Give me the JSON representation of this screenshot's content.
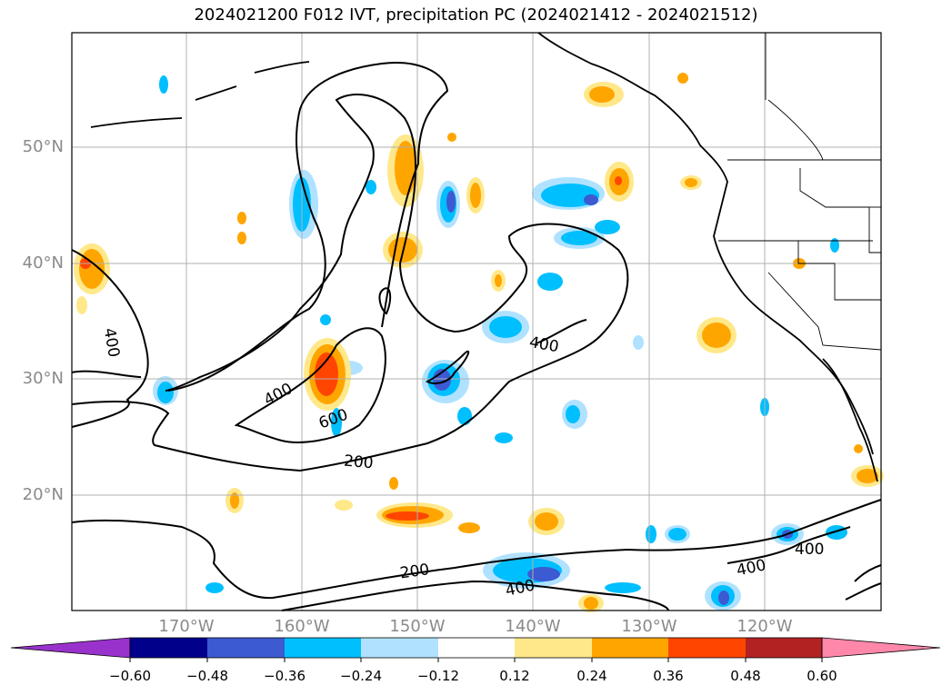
{
  "title": "2024021200 F012 IVT, precipitation PC (2024021412 - 2024021512)",
  "lat_labels": [
    "50°N",
    "40°N",
    "30°N",
    "20°N"
  ],
  "lon_labels": [
    "170°W",
    "160°W",
    "150°W",
    "140°W",
    "130°W",
    "120°W"
  ],
  "contour_labels": [
    "400",
    "400",
    "400",
    "600",
    "200",
    "200",
    "400",
    "400",
    "400"
  ],
  "colorbar": {
    "ticks": [
      "−0.60",
      "−0.48",
      "−0.36",
      "−0.24",
      "−0.12",
      "0.12",
      "0.24",
      "0.36",
      "0.48",
      "0.60"
    ],
    "colors": [
      "#9932cc",
      "#00008b",
      "#3c5ad2",
      "#00bfff",
      "#b0e2ff",
      "#ffffff",
      "#ffe88a",
      "#ffa500",
      "#ff4500",
      "#b22222",
      "#ff88aa"
    ]
  },
  "colors": {
    "contour": "#000000",
    "grid": "#b0b0b0",
    "neg_light": "#b0e2ff",
    "neg_mid": "#00bfff",
    "neg_dark": "#3c5ad2",
    "pos_light": "#ffe88a",
    "pos_mid": "#ffa500",
    "pos_dark": "#ff4500"
  }
}
